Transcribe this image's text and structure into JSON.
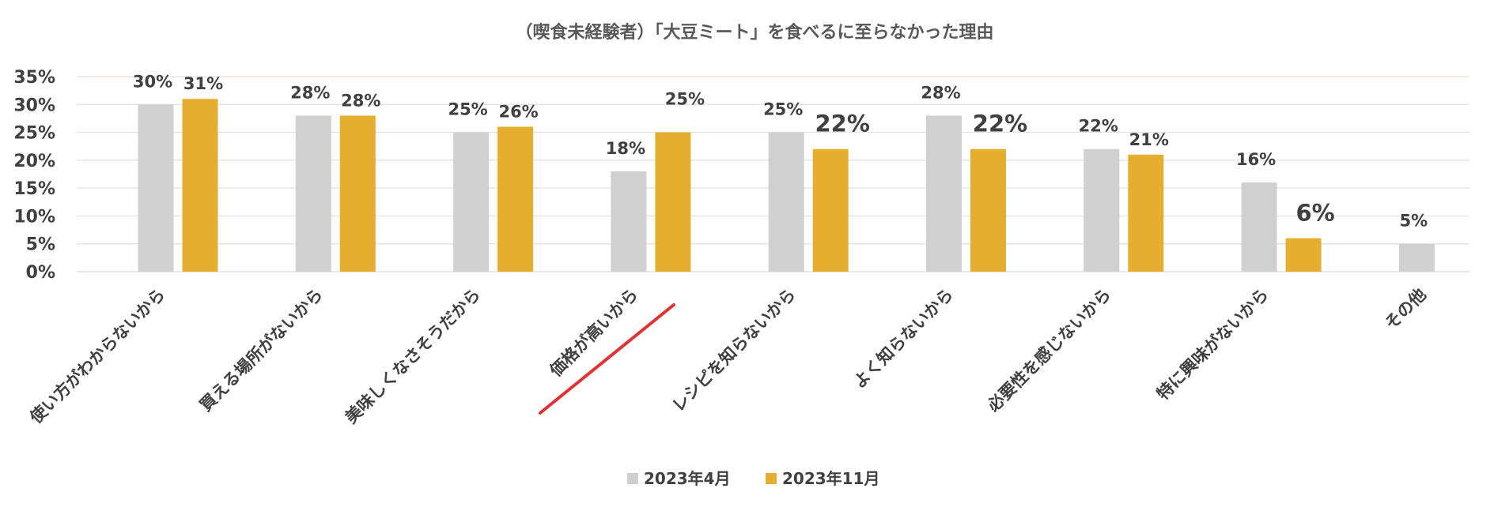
{
  "chart_data": {
    "type": "bar",
    "title": "（喫食未経験者）「大豆ミート」を食べるに至らなかった理由",
    "xlabel": "",
    "ylabel": "",
    "ylim": [
      0,
      35
    ],
    "yticks": [
      "0%",
      "5%",
      "10%",
      "15%",
      "20%",
      "25%",
      "30%",
      "35%"
    ],
    "grid": true,
    "legend_position": "bottom",
    "categories": [
      "使い方がわからないから",
      "買える場所がないから",
      "美味しくなさそうだから",
      "価格が高いから",
      "レシピを知らないから",
      "よく知らないから",
      "必要性を感じないから",
      "特に興味がないから",
      "その他"
    ],
    "series": [
      {
        "name": "2023年4月",
        "color": "#d0d0d0",
        "values": [
          30,
          28,
          25,
          18,
          25,
          28,
          22,
          16,
          5
        ],
        "labels": [
          "30%",
          "28%",
          "25%",
          "18%",
          "25%",
          "28%",
          "22%",
          "16%",
          "5%"
        ]
      },
      {
        "name": "2023年11月",
        "color": "#e6ae2e",
        "values": [
          31,
          28,
          26,
          25,
          22,
          22,
          21,
          6,
          null
        ],
        "labels": [
          "31%",
          "28%",
          "26%",
          "25%",
          "22%",
          "22%",
          "21%",
          "6%",
          ""
        ]
      }
    ],
    "highlights": {
      "increase_color": "#e03333",
      "decrease_color": "#2a6fb0",
      "increase_labels": [
        3
      ],
      "decrease_labels": [
        4,
        5,
        7
      ],
      "underlined_category": 3
    }
  }
}
